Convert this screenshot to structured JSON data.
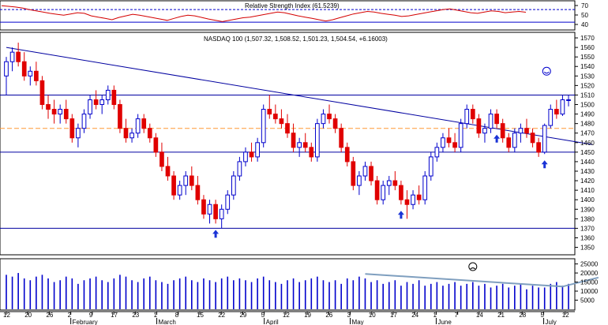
{
  "chart_data": {
    "type": "candlestick",
    "rsi_panel": {
      "title": "Relative Strength Index (61.5239)",
      "y_ticks": [
        "70",
        "50",
        "40"
      ],
      "upper_level": 70,
      "lower_level": 30,
      "values": [
        82,
        80,
        78,
        75,
        70,
        66,
        62,
        58,
        55,
        52,
        56,
        60,
        58,
        50,
        46,
        42,
        38,
        45,
        50,
        55,
        52,
        48,
        44,
        40,
        36,
        42,
        48,
        52,
        50,
        45,
        40,
        36,
        32,
        36,
        40,
        44,
        46,
        50,
        54,
        58,
        62,
        60,
        55,
        50,
        46,
        42,
        38,
        34,
        38,
        44,
        50,
        56,
        60,
        64,
        62,
        58,
        55,
        52,
        48,
        50,
        54,
        58,
        62,
        66,
        70,
        72,
        68,
        64,
        60,
        58,
        62,
        66,
        64,
        60,
        62,
        64,
        61.5
      ]
    },
    "price_panel": {
      "title": "NASDAQ 100 (1,507.32, 1,508.52, 1,501.23, 1,504.54, +6.16003)",
      "y_ticks": [
        "1570",
        "1560",
        "1550",
        "1540",
        "1530",
        "1520",
        "1510",
        "1500",
        "1490",
        "1480",
        "1470",
        "1460",
        "1450",
        "1440",
        "1430",
        "1420",
        "1410",
        "1400",
        "1390",
        "1380",
        "1370",
        "1360",
        "1350"
      ],
      "ylim": [
        1343,
        1575
      ],
      "horizontal_lines": [
        1510,
        1450,
        1370
      ],
      "dashed_line": 1475,
      "trendline": {
        "from": [
          0,
          1560
        ],
        "to": [
          98,
          1458
        ]
      },
      "candles": [
        [
          1530,
          1550,
          1510,
          1545
        ],
        [
          1545,
          1560,
          1535,
          1555
        ],
        [
          1555,
          1565,
          1540,
          1545
        ],
        [
          1545,
          1555,
          1525,
          1530
        ],
        [
          1530,
          1540,
          1520,
          1535
        ],
        [
          1535,
          1545,
          1520,
          1525
        ],
        [
          1525,
          1530,
          1495,
          1500
        ],
        [
          1500,
          1510,
          1485,
          1495
        ],
        [
          1495,
          1505,
          1480,
          1490
        ],
        [
          1490,
          1500,
          1480,
          1495
        ],
        [
          1495,
          1505,
          1480,
          1485
        ],
        [
          1485,
          1490,
          1460,
          1465
        ],
        [
          1465,
          1480,
          1455,
          1475
        ],
        [
          1475,
          1495,
          1470,
          1490
        ],
        [
          1490,
          1510,
          1485,
          1505
        ],
        [
          1505,
          1515,
          1495,
          1500
        ],
        [
          1500,
          1510,
          1490,
          1505
        ],
        [
          1505,
          1520,
          1500,
          1515
        ],
        [
          1515,
          1520,
          1495,
          1500
        ],
        [
          1500,
          1505,
          1470,
          1475
        ],
        [
          1475,
          1485,
          1460,
          1465
        ],
        [
          1465,
          1475,
          1460,
          1470
        ],
        [
          1470,
          1490,
          1465,
          1485
        ],
        [
          1485,
          1490,
          1470,
          1475
        ],
        [
          1475,
          1480,
          1460,
          1465
        ],
        [
          1465,
          1470,
          1445,
          1450
        ],
        [
          1450,
          1460,
          1430,
          1435
        ],
        [
          1435,
          1445,
          1420,
          1425
        ],
        [
          1425,
          1430,
          1400,
          1405
        ],
        [
          1405,
          1420,
          1400,
          1415
        ],
        [
          1415,
          1430,
          1405,
          1425
        ],
        [
          1425,
          1435,
          1410,
          1415
        ],
        [
          1415,
          1425,
          1395,
          1400
        ],
        [
          1400,
          1405,
          1380,
          1385
        ],
        [
          1385,
          1400,
          1375,
          1395
        ],
        [
          1395,
          1400,
          1375,
          1380
        ],
        [
          1380,
          1395,
          1370,
          1390
        ],
        [
          1390,
          1410,
          1385,
          1405
        ],
        [
          1405,
          1430,
          1400,
          1425
        ],
        [
          1425,
          1445,
          1420,
          1440
        ],
        [
          1440,
          1455,
          1435,
          1450
        ],
        [
          1450,
          1460,
          1440,
          1445
        ],
        [
          1445,
          1465,
          1440,
          1460
        ],
        [
          1460,
          1500,
          1455,
          1495
        ],
        [
          1495,
          1510,
          1485,
          1490
        ],
        [
          1490,
          1500,
          1480,
          1485
        ],
        [
          1485,
          1495,
          1475,
          1480
        ],
        [
          1480,
          1490,
          1465,
          1470
        ],
        [
          1470,
          1480,
          1450,
          1455
        ],
        [
          1455,
          1465,
          1445,
          1460
        ],
        [
          1460,
          1470,
          1450,
          1455
        ],
        [
          1455,
          1460,
          1440,
          1445
        ],
        [
          1445,
          1485,
          1440,
          1480
        ],
        [
          1480,
          1495,
          1475,
          1490
        ],
        [
          1490,
          1500,
          1480,
          1485
        ],
        [
          1485,
          1490,
          1470,
          1475
        ],
        [
          1475,
          1480,
          1450,
          1455
        ],
        [
          1455,
          1460,
          1435,
          1440
        ],
        [
          1440,
          1445,
          1410,
          1415
        ],
        [
          1415,
          1430,
          1405,
          1425
        ],
        [
          1425,
          1440,
          1420,
          1435
        ],
        [
          1435,
          1440,
          1415,
          1420
        ],
        [
          1420,
          1425,
          1395,
          1400
        ],
        [
          1400,
          1420,
          1395,
          1415
        ],
        [
          1415,
          1425,
          1405,
          1420
        ],
        [
          1420,
          1430,
          1410,
          1415
        ],
        [
          1415,
          1420,
          1395,
          1400
        ],
        [
          1400,
          1410,
          1380,
          1395
        ],
        [
          1395,
          1410,
          1390,
          1405
        ],
        [
          1405,
          1415,
          1395,
          1400
        ],
        [
          1400,
          1430,
          1395,
          1425
        ],
        [
          1425,
          1450,
          1420,
          1445
        ],
        [
          1445,
          1460,
          1440,
          1455
        ],
        [
          1455,
          1470,
          1450,
          1465
        ],
        [
          1465,
          1475,
          1455,
          1460
        ],
        [
          1460,
          1470,
          1450,
          1455
        ],
        [
          1455,
          1485,
          1450,
          1480
        ],
        [
          1480,
          1500,
          1475,
          1495
        ],
        [
          1495,
          1500,
          1480,
          1485
        ],
        [
          1485,
          1490,
          1465,
          1470
        ],
        [
          1470,
          1480,
          1460,
          1475
        ],
        [
          1475,
          1495,
          1470,
          1490
        ],
        [
          1490,
          1495,
          1475,
          1480
        ],
        [
          1480,
          1485,
          1460,
          1465
        ],
        [
          1465,
          1470,
          1450,
          1455
        ],
        [
          1455,
          1475,
          1450,
          1470
        ],
        [
          1470,
          1480,
          1460,
          1475
        ],
        [
          1475,
          1485,
          1465,
          1470
        ],
        [
          1470,
          1475,
          1455,
          1460
        ],
        [
          1460,
          1465,
          1445,
          1450
        ],
        [
          1450,
          1480,
          1448,
          1478
        ],
        [
          1478,
          1500,
          1475,
          1495
        ],
        [
          1495,
          1505,
          1485,
          1490
        ],
        [
          1490,
          1510,
          1488,
          1505
        ],
        [
          1505,
          1510,
          1498,
          1505
        ]
      ],
      "up_arrows_idx": [
        35,
        66,
        82,
        90
      ],
      "smiley_idx": 91
    },
    "volume_panel": {
      "y_ticks": [
        "25000",
        "20000",
        "15000",
        "10000",
        "5000"
      ],
      "ylim": [
        0,
        27000
      ],
      "values": [
        19000,
        18000,
        20000,
        17000,
        16000,
        18000,
        19000,
        17000,
        15000,
        16000,
        18000,
        17000,
        14000,
        16000,
        17000,
        18000,
        16000,
        15000,
        17000,
        19000,
        18000,
        16000,
        15000,
        17000,
        18000,
        16000,
        15000,
        14000,
        16000,
        17000,
        18000,
        16000,
        15000,
        17000,
        16000,
        15000,
        17000,
        18000,
        16000,
        17000,
        16000,
        15000,
        17000,
        18000,
        16000,
        15000,
        14000,
        16000,
        17000,
        15000,
        16000,
        17000,
        18000,
        16000,
        15000,
        16000,
        14000,
        17000,
        16000,
        18000,
        17000,
        15000,
        16000,
        14000,
        15000,
        16000,
        13000,
        15000,
        14000,
        16000,
        13000,
        14000,
        15000,
        13000,
        14000,
        15000,
        13000,
        14000,
        15000,
        13000,
        14000,
        12000,
        13000,
        14000,
        12000,
        13000,
        14000,
        11000,
        13000,
        12000,
        12000,
        14000,
        15000,
        13000,
        14000
      ]
    },
    "x_axis": {
      "tick_labels": [
        "12",
        "20",
        "26",
        "2",
        "9",
        "17",
        "23",
        "1",
        "8",
        "15",
        "22",
        "29",
        "5",
        "12",
        "19",
        "26",
        "3",
        "10",
        "17",
        "24",
        "1",
        "7",
        "14",
        "21",
        "28",
        "5",
        "12"
      ],
      "month_labels": [
        "February",
        "March",
        "April",
        "May",
        "June",
        "July"
      ]
    }
  }
}
